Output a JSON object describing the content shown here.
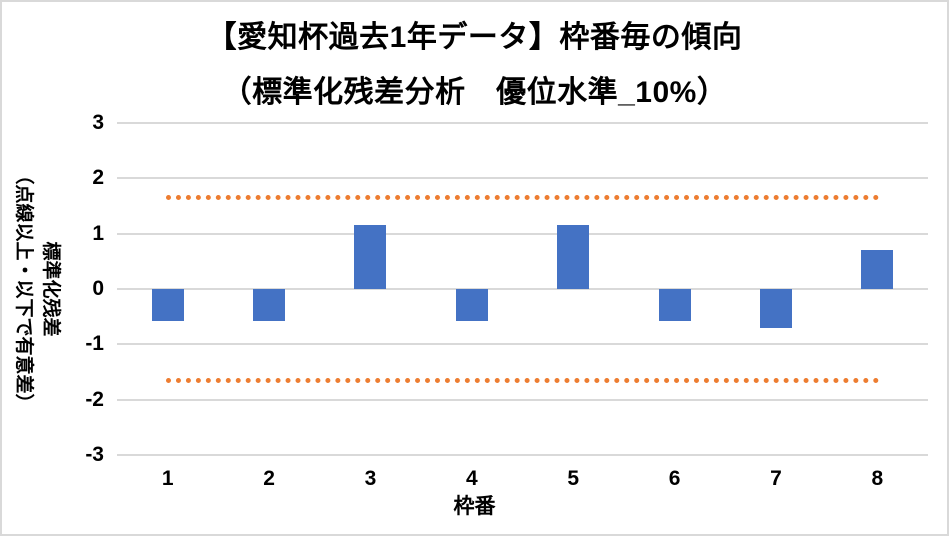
{
  "chart_data": {
    "type": "bar",
    "title": "【愛知杯過去1年データ】枠番毎の傾向",
    "subtitle": "（標準化残差分析　優位水準_10%）",
    "xlabel": "枠番",
    "ylabel": "標準化残差",
    "ylabel_note": "（点線以上・以下で有意差）",
    "categories": [
      "1",
      "2",
      "3",
      "4",
      "5",
      "6",
      "7",
      "8"
    ],
    "values": [
      -0.58,
      -0.58,
      1.15,
      -0.58,
      1.15,
      -0.58,
      -0.7,
      0.71
    ],
    "threshold_upper": 1.645,
    "threshold_lower": -1.645,
    "ylim": [
      -3,
      3
    ],
    "yticks": [
      3,
      2,
      1,
      0,
      -1,
      -2,
      -3
    ],
    "grid": true,
    "legend": "none",
    "colors": {
      "bar": "#4472C4",
      "threshold_line": "#ED7D31",
      "gridline": "#D9D9D9",
      "text": "#000000",
      "frame_border": "#D9D9D9"
    }
  }
}
